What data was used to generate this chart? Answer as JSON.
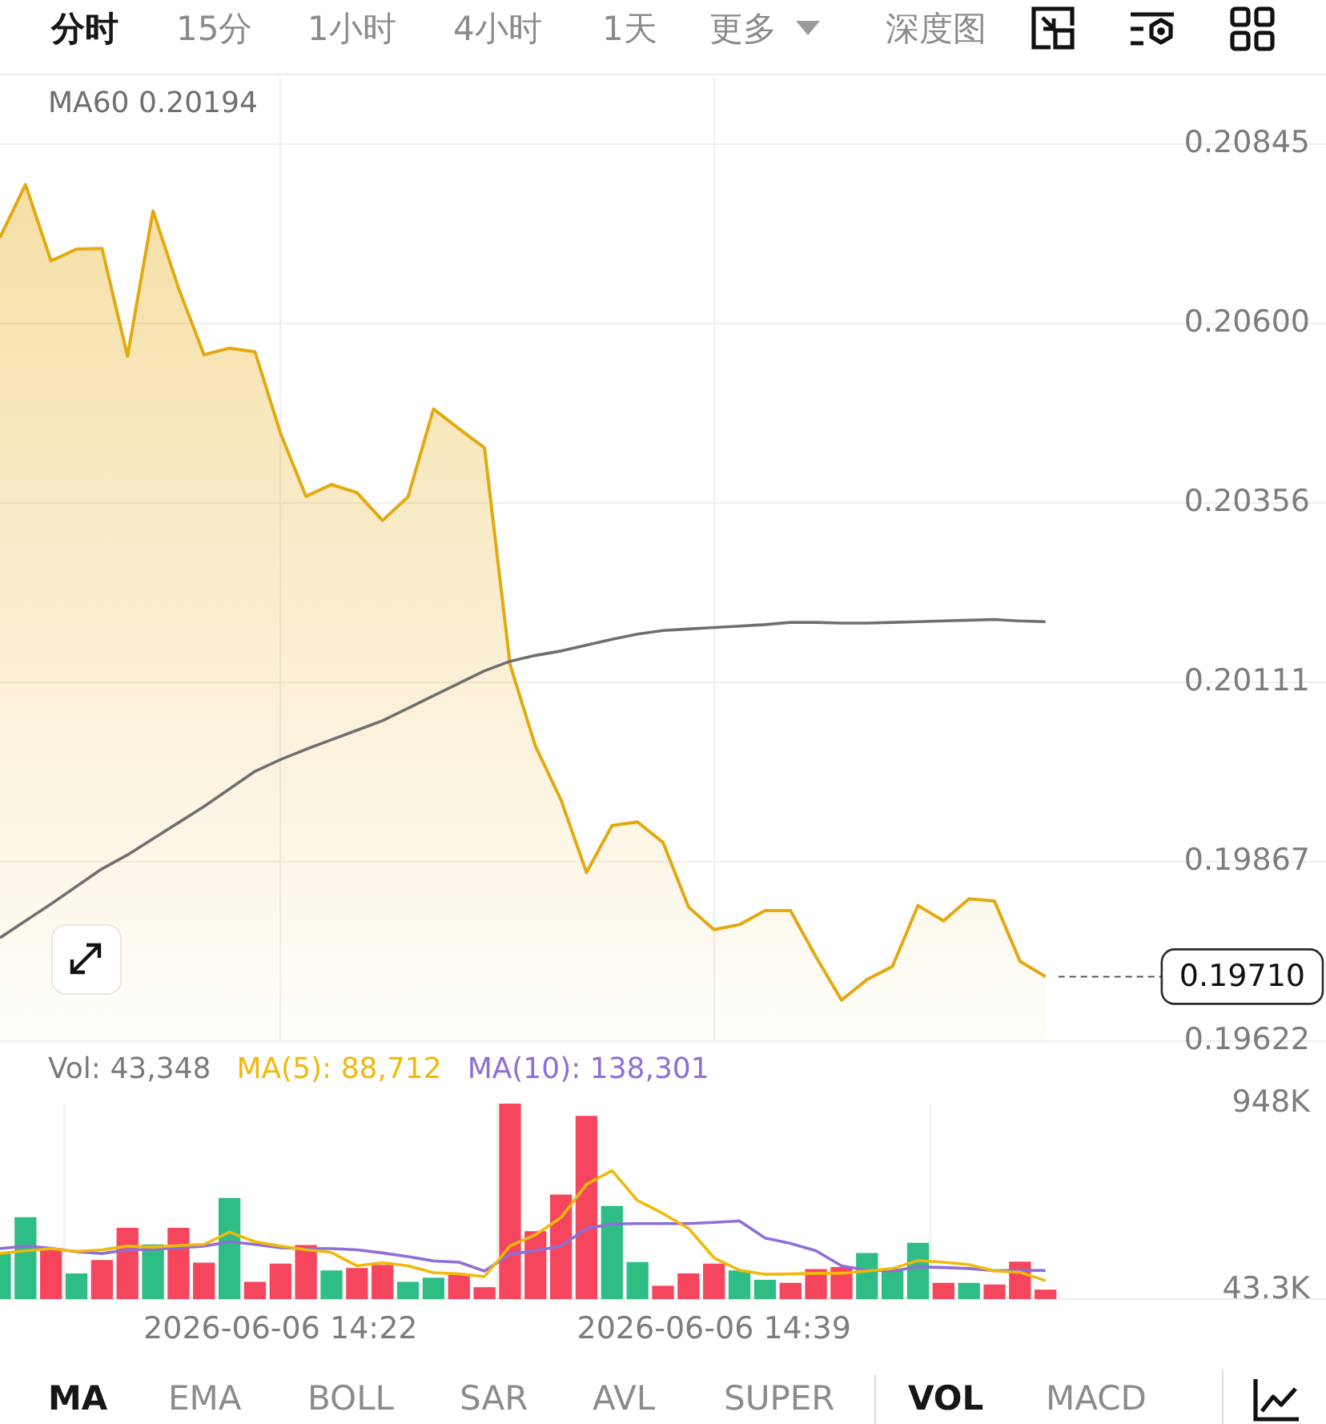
{
  "chart_data": [
    {
      "type": "area",
      "annotations": [
        "分时",
        "15分",
        "1小时",
        "4小时",
        "1天",
        "更多",
        "深度图"
      ],
      "x": [
        "2026-06-06T14:11",
        "2026-06-06T14:12",
        "2026-06-06T14:13",
        "2026-06-06T14:14",
        "2026-06-06T14:15",
        "2026-06-06T14:16",
        "2026-06-06T14:17",
        "2026-06-06T14:18",
        "2026-06-06T14:19",
        "2026-06-06T14:20",
        "2026-06-06T14:21",
        "2026-06-06T14:22",
        "2026-06-06T14:23",
        "2026-06-06T14:24",
        "2026-06-06T14:25",
        "2026-06-06T14:26",
        "2026-06-06T14:27",
        "2026-06-06T14:28",
        "2026-06-06T14:29",
        "2026-06-06T14:30",
        "2026-06-06T14:31",
        "2026-06-06T14:32",
        "2026-06-06T14:33",
        "2026-06-06T14:34",
        "2026-06-06T14:35",
        "2026-06-06T14:36",
        "2026-06-06T14:37",
        "2026-06-06T14:38",
        "2026-06-06T14:39",
        "2026-06-06T14:40",
        "2026-06-06T14:41",
        "2026-06-06T14:42",
        "2026-06-06T14:43",
        "2026-06-06T14:44",
        "2026-06-06T14:45",
        "2026-06-06T14:46",
        "2026-06-06T14:47",
        "2026-06-06T14:48",
        "2026-06-06T14:49",
        "2026-06-06T14:50",
        "2026-06-06T14:51",
        "2026-06-06T14:52"
      ],
      "xlim": [
        "2026-06-06T14:11",
        "2026-06-06T15:03"
      ],
      "xticks": [
        {
          "value": "2026-06-06T14:22",
          "label": null
        },
        {
          "value": "2026-06-06T14:39",
          "label": null
        }
      ],
      "tick_labels": "y",
      "ylim": [
        0.19622,
        0.20936
      ],
      "yticks": [
        0.19622,
        0.19867,
        0.20111,
        0.20356,
        {
          "value": 0.206,
          "label": "0.20600"
        },
        0.20845
      ],
      "series": [
        {
          "color": "#e3a90f",
          "values": [
            0.20718,
            0.2079,
            0.20686,
            0.20702,
            0.20703,
            0.20556,
            0.20754,
            0.20649,
            0.20558,
            0.20567,
            0.20562,
            0.20451,
            0.20365,
            0.20381,
            0.2037,
            0.20332,
            0.20364,
            0.20484,
            0.20457,
            0.20431,
            0.20136,
            0.20024,
            0.19951,
            0.19852,
            0.19916,
            0.19921,
            0.19893,
            0.19805,
            0.19774,
            0.19781,
            0.198,
            0.198,
            0.19737,
            0.19678,
            0.19706,
            0.19724,
            0.19807,
            0.19786,
            0.19816,
            0.19813,
            0.19731,
            0.1971
          ]
        },
        {
          "name": "MA60 0.20194",
          "type": "line",
          "color": "#6f6f6f",
          "values": [
            0.19763,
            0.19786,
            0.19809,
            0.19833,
            0.19857,
            0.19876,
            0.19898,
            0.1992,
            0.19942,
            0.19966,
            0.1999,
            0.20006,
            0.2002,
            0.20033,
            0.20046,
            0.20059,
            0.20076,
            0.20093,
            0.2011,
            0.20127,
            0.2014,
            0.20148,
            0.20154,
            0.20162,
            0.2017,
            0.20177,
            0.20182,
            0.20184,
            0.20186,
            0.20188,
            0.2019,
            0.20193,
            0.20193,
            0.20192,
            0.20192,
            0.20193,
            0.20194,
            0.20195,
            0.20196,
            0.20197,
            0.20195,
            0.20194
          ]
        }
      ],
      "ref_lines": [
        {
          "axis": "y",
          "value": 0.1971,
          "label": "0.19710",
          "line_style": "dashed",
          "color": "#555555"
        }
      ],
      "grid": true,
      "legend": "top left",
      "marker": "none"
    },
    {
      "type": "bar",
      "annotations": [
        "Vol: 43,348",
        "MA",
        "EMA",
        "BOLL",
        "SAR",
        "AVL",
        "SUPER",
        "VOL",
        "MACD"
      ],
      "x": [
        "2026-06-06T14:11",
        "2026-06-06T14:12",
        "2026-06-06T14:13",
        "2026-06-06T14:14",
        "2026-06-06T14:15",
        "2026-06-06T14:16",
        "2026-06-06T14:17",
        "2026-06-06T14:18",
        "2026-06-06T14:19",
        "2026-06-06T14:20",
        "2026-06-06T14:21",
        "2026-06-06T14:22",
        "2026-06-06T14:23",
        "2026-06-06T14:24",
        "2026-06-06T14:25",
        "2026-06-06T14:26",
        "2026-06-06T14:27",
        "2026-06-06T14:28",
        "2026-06-06T14:29",
        "2026-06-06T14:30",
        "2026-06-06T14:31",
        "2026-06-06T14:32",
        "2026-06-06T14:33",
        "2026-06-06T14:34",
        "2026-06-06T14:35",
        "2026-06-06T14:36",
        "2026-06-06T14:37",
        "2026-06-06T14:38",
        "2026-06-06T14:39",
        "2026-06-06T14:40",
        "2026-06-06T14:41",
        "2026-06-06T14:42",
        "2026-06-06T14:43",
        "2026-06-06T14:44",
        "2026-06-06T14:45",
        "2026-06-06T14:46",
        "2026-06-06T14:47",
        "2026-06-06T14:48",
        "2026-06-06T14:49",
        "2026-06-06T14:50",
        "2026-06-06T14:51",
        "2026-06-06T14:52"
      ],
      "xlim": [
        "2026-06-06T14:11",
        "2026-06-06T15:03"
      ],
      "xticks": [
        {
          "value": "2026-06-06T14:22",
          "label": "2026-06-06 14:22"
        },
        {
          "value": "2026-06-06T14:39",
          "label": "2026-06-06 14:39"
        }
      ],
      "ylim": [
        0,
        948000
      ],
      "yticks": [
        {
          "value": 43300,
          "label": "43.3K"
        },
        {
          "value": 948000,
          "label": "948K"
        }
      ],
      "series": [
        {
          "type": "bar",
          "colors": [
            "#2ebd85",
            "#2ebd85",
            "#f6465d",
            "#2ebd85",
            "#f6465d",
            "#f6465d",
            "#2ebd85",
            "#f6465d",
            "#f6465d",
            "#2ebd85",
            "#f6465d",
            "#f6465d",
            "#f6465d",
            "#2ebd85",
            "#f6465d",
            "#f6465d",
            "#2ebd85",
            "#2ebd85",
            "#f6465d",
            "#f6465d",
            "#f6465d",
            "#f6465d",
            "#f6465d",
            "#f6465d",
            "#2ebd85",
            "#2ebd85",
            "#f6465d",
            "#f6465d",
            "#f6465d",
            "#2ebd85",
            "#2ebd85",
            "#f6465d",
            "#f6465d",
            "#f6465d",
            "#2ebd85",
            "#2ebd85",
            "#2ebd85",
            "#f6465d",
            "#2ebd85",
            "#f6465d",
            "#f6465d",
            "#f6465d"
          ],
          "values": [
            221000,
            395000,
            239000,
            122000,
            187000,
            343000,
            263000,
            343000,
            174000,
            488000,
            81000,
            169000,
            260000,
            136000,
            148000,
            164000,
            81000,
            101000,
            122000,
            55000,
            948000,
            327000,
            504000,
            886000,
            449000,
            177000,
            62000,
            122000,
            169000,
            136000,
            91000,
            76000,
            143000,
            153000,
            221000,
            143000,
            270000,
            76000,
            76000,
            68000,
            179000,
            43348
          ]
        },
        {
          "name": "MA(5): 88,712",
          "type": "line",
          "color": "#f0b90b",
          "values": [
            221000,
            234000,
            245000,
            231000,
            239000,
            257000,
            252000,
            260000,
            265000,
            325000,
            278000,
            257000,
            239000,
            226000,
            161000,
            177000,
            161000,
            128000,
            122000,
            109000,
            257000,
            312000,
            395000,
            556000,
            623000,
            478000,
            415000,
            343000,
            200000,
            140000,
            120000,
            122000,
            125000,
            125000,
            136000,
            148000,
            187000,
            179000,
            167000,
            136000,
            130000,
            88712
          ]
        },
        {
          "name": "MA(10): 138,301",
          "type": "line",
          "color": "#8e6fd6",
          "values": [
            245000,
            257000,
            247000,
            229000,
            221000,
            239000,
            241000,
            249000,
            257000,
            278000,
            265000,
            249000,
            245000,
            245000,
            239000,
            224000,
            206000,
            185000,
            179000,
            136000,
            218000,
            234000,
            257000,
            343000,
            364000,
            366000,
            366000,
            366000,
            372000,
            379000,
            296000,
            270000,
            234000,
            161000,
            140000,
            136000,
            156000,
            153000,
            148000,
            138000,
            140000,
            138301
          ]
        }
      ],
      "grid": "x",
      "legend": "top left",
      "marker": "none"
    }
  ]
}
